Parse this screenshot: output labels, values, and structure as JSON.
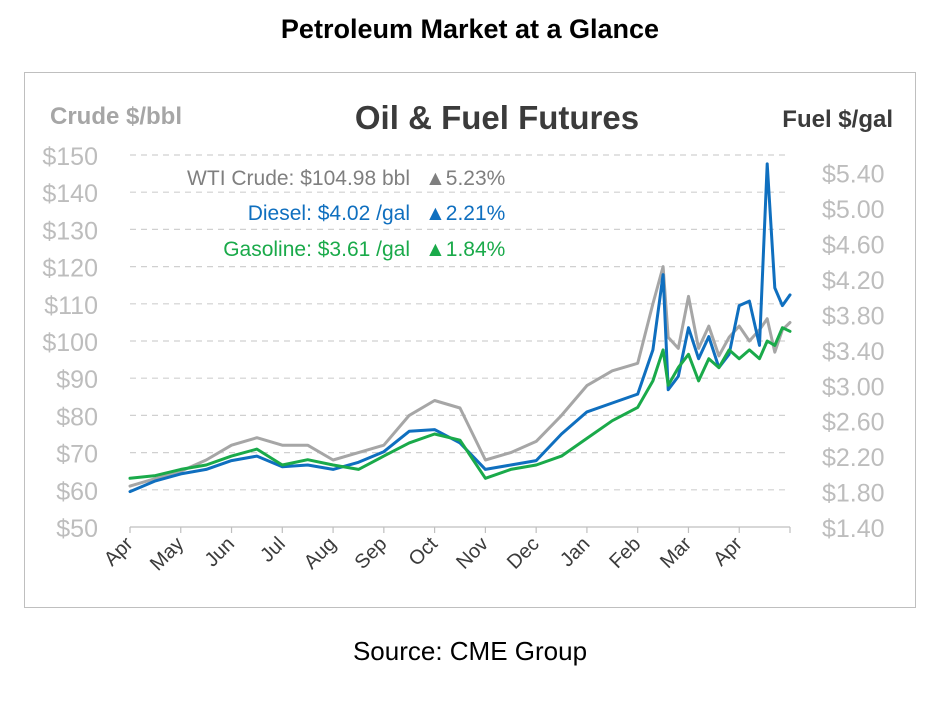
{
  "page": {
    "title": "Petroleum Market at a Glance",
    "source": "Source: CME Group"
  },
  "colors": {
    "crude": "#a6a6a6",
    "diesel": "#0f6fbf",
    "gasoline": "#1aaa4a",
    "grid": "#d0d0d0",
    "axis_text": "#bdbdbd"
  },
  "chart_data": {
    "type": "line",
    "title": "Oil & Fuel Futures",
    "left_axis_label": "Crude $/bbl",
    "right_axis_label": "Fuel $/gal",
    "left_ylim": [
      50,
      150
    ],
    "right_ylim": [
      1.4,
      5.6
    ],
    "left_ticks": [
      "$150",
      "$140",
      "$130",
      "$120",
      "$110",
      "$100",
      "$90",
      "$80",
      "$70",
      "$60",
      "$50"
    ],
    "right_ticks": [
      "$5.40",
      "$5.00",
      "$4.60",
      "$4.20",
      "$3.80",
      "$3.40",
      "$3.00",
      "$2.60",
      "$2.20",
      "$1.80",
      "$1.40"
    ],
    "x_tick_labels": [
      "Apr",
      "May",
      "Jun",
      "Jul",
      "Aug",
      "Sep",
      "Oct",
      "Nov",
      "Dec",
      "Jan",
      "Feb",
      "Mar",
      "Apr"
    ],
    "grid": true,
    "legend": [
      {
        "series": "WTI Crude",
        "text": "WTI Crude: $104.98 bbl",
        "change": "▲5.23%"
      },
      {
        "series": "Diesel",
        "text": "Diesel:   $4.02 /gal",
        "change": "▲2.21%"
      },
      {
        "series": "Gasoline",
        "text": "Gasoline:   $3.61 /gal",
        "change": "▲1.84%"
      }
    ],
    "x_month_index": [
      0,
      0.5,
      1,
      1.5,
      2,
      2.5,
      3,
      3.5,
      4,
      4.5,
      5,
      5.5,
      6,
      6.5,
      7,
      7.5,
      8,
      8.5,
      9,
      9.5,
      10,
      10.3,
      10.5,
      10.6,
      10.8,
      11,
      11.2,
      11.4,
      11.6,
      11.8,
      12,
      12.2,
      12.4,
      12.55,
      12.7,
      12.85,
      13
    ],
    "series": [
      {
        "name": "WTI Crude",
        "axis": "left",
        "values": [
          61,
          63,
          65,
          68,
          72,
          74,
          72,
          72,
          68,
          70,
          72,
          80,
          84,
          82,
          68,
          70,
          73,
          80,
          88,
          92,
          94,
          110,
          120,
          101,
          98,
          112,
          98,
          104,
          96,
          101,
          104,
          100,
          103,
          106,
          97,
          103,
          104.98
        ]
      },
      {
        "name": "Diesel",
        "axis": "right",
        "values": [
          1.8,
          1.92,
          2.0,
          2.05,
          2.15,
          2.2,
          2.08,
          2.1,
          2.05,
          2.13,
          2.25,
          2.48,
          2.5,
          2.35,
          2.05,
          2.1,
          2.15,
          2.45,
          2.7,
          2.8,
          2.9,
          3.4,
          4.25,
          2.95,
          3.1,
          3.65,
          3.3,
          3.55,
          3.2,
          3.35,
          3.9,
          3.95,
          3.45,
          5.5,
          4.1,
          3.9,
          4.02
        ]
      },
      {
        "name": "Gasoline",
        "axis": "right",
        "values": [
          1.95,
          1.98,
          2.05,
          2.1,
          2.2,
          2.28,
          2.1,
          2.16,
          2.1,
          2.05,
          2.2,
          2.35,
          2.45,
          2.38,
          1.95,
          2.05,
          2.1,
          2.2,
          2.4,
          2.6,
          2.75,
          3.05,
          3.4,
          3.0,
          3.2,
          3.35,
          3.05,
          3.3,
          3.2,
          3.4,
          3.3,
          3.4,
          3.3,
          3.5,
          3.45,
          3.65,
          3.61
        ]
      }
    ]
  }
}
